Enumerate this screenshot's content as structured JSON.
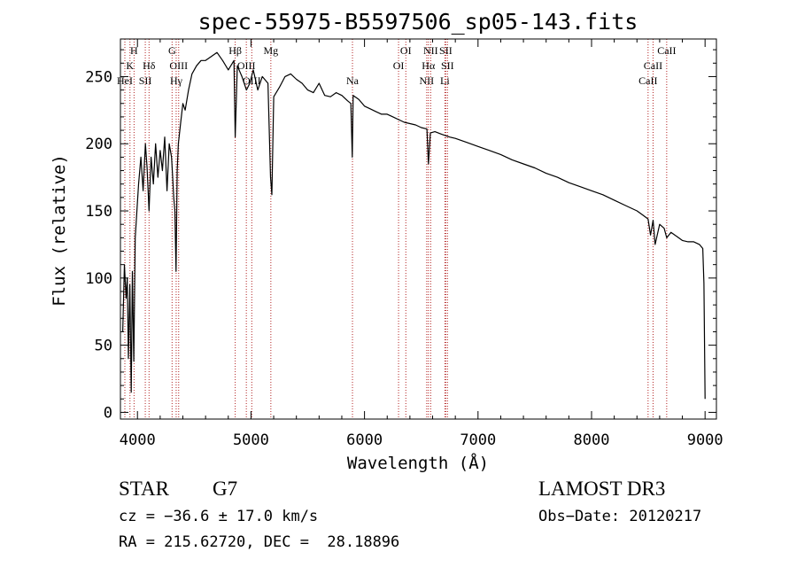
{
  "chart_data": {
    "type": "line",
    "title": "spec-55975-B5597506_sp05-143.fits",
    "xlabel": "Wavelength (Å)",
    "ylabel": "Flux (relative)",
    "xlim": [
      3850,
      9100
    ],
    "ylim": [
      -5,
      278
    ],
    "grid": false,
    "x_ticks": [
      4000,
      5000,
      6000,
      7000,
      8000,
      9000
    ],
    "x_tick_labels": [
      "4000",
      "5000",
      "6000",
      "7000",
      "8000",
      "9000"
    ],
    "y_ticks": [
      0,
      50,
      100,
      150,
      200,
      250
    ],
    "y_tick_labels": [
      "0",
      "50",
      "100",
      "150",
      "200",
      "250"
    ],
    "series": [
      {
        "name": "spectrum",
        "color": "#000000",
        "x": [
          3870,
          3885,
          3900,
          3910,
          3920,
          3933,
          3945,
          3955,
          3968,
          3980,
          3995,
          4010,
          4030,
          4050,
          4070,
          4085,
          4102,
          4120,
          4140,
          4160,
          4180,
          4200,
          4220,
          4240,
          4260,
          4280,
          4300,
          4310,
          4320,
          4330,
          4340,
          4350,
          4360,
          4380,
          4400,
          4420,
          4450,
          4480,
          4520,
          4560,
          4600,
          4650,
          4700,
          4750,
          4800,
          4850,
          4861,
          4880,
          4920,
          4960,
          4990,
          5020,
          5060,
          5100,
          5150,
          5172,
          5184,
          5200,
          5250,
          5300,
          5350,
          5400,
          5450,
          5500,
          5550,
          5600,
          5650,
          5700,
          5750,
          5800,
          5850,
          5880,
          5892,
          5900,
          5950,
          6000,
          6050,
          6100,
          6150,
          6200,
          6250,
          6300,
          6350,
          6400,
          6450,
          6500,
          6550,
          6563,
          6580,
          6620,
          6680,
          6750,
          6800,
          6900,
          7000,
          7100,
          7200,
          7300,
          7400,
          7500,
          7600,
          7700,
          7800,
          7900,
          8000,
          8100,
          8200,
          8300,
          8400,
          8450,
          8498,
          8520,
          8542,
          8560,
          8600,
          8640,
          8662,
          8700,
          8750,
          8800,
          8850,
          8900,
          8950,
          8980,
          8990,
          9000
        ],
        "values": [
          60,
          110,
          85,
          100,
          40,
          95,
          15,
          105,
          38,
          130,
          150,
          170,
          190,
          165,
          200,
          182,
          150,
          190,
          170,
          200,
          175,
          195,
          180,
          205,
          165,
          200,
          190,
          175,
          160,
          150,
          105,
          180,
          200,
          215,
          230,
          225,
          240,
          252,
          258,
          262,
          262,
          265,
          268,
          262,
          255,
          262,
          205,
          258,
          250,
          240,
          245,
          255,
          240,
          250,
          245,
          175,
          162,
          235,
          242,
          250,
          252,
          248,
          245,
          240,
          238,
          245,
          236,
          235,
          238,
          236,
          232,
          230,
          190,
          236,
          233,
          228,
          226,
          224,
          222,
          222,
          220,
          218,
          216,
          215,
          214,
          212,
          211,
          185,
          208,
          209,
          207,
          205,
          204,
          201,
          198,
          195,
          192,
          188,
          185,
          182,
          178,
          175,
          171,
          168,
          165,
          162,
          158,
          154,
          150,
          147,
          144,
          132,
          143,
          125,
          140,
          137,
          130,
          134,
          131,
          128,
          127,
          127,
          125,
          122,
          96,
          10
        ]
      }
    ],
    "spectral_lines": [
      {
        "label": "H",
        "wavelength": 3970,
        "row": 0
      },
      {
        "label": "K",
        "wavelength": 3934,
        "row": 1
      },
      {
        "label": "HeI",
        "wavelength": 3889,
        "row": 2
      },
      {
        "label": "SII",
        "wavelength": 4069,
        "row": 2
      },
      {
        "label": "Hδ",
        "wavelength": 4102,
        "row": 1
      },
      {
        "label": "G",
        "wavelength": 4305,
        "row": 0
      },
      {
        "label": "OIII",
        "wavelength": 4363,
        "row": 1
      },
      {
        "label": "Hγ",
        "wavelength": 4341,
        "row": 2
      },
      {
        "label": "Hβ",
        "wavelength": 4861,
        "row": 0
      },
      {
        "label": "OIII",
        "wavelength": 4959,
        "row": 1
      },
      {
        "label": "OIII",
        "wavelength": 5007,
        "row": 2
      },
      {
        "label": "Mg",
        "wavelength": 5175,
        "row": 0
      },
      {
        "label": "Na",
        "wavelength": 5894,
        "row": 2
      },
      {
        "label": "OI",
        "wavelength": 6300,
        "row": 1
      },
      {
        "label": "OI",
        "wavelength": 6364,
        "row": 0
      },
      {
        "label": "NII",
        "wavelength": 6548,
        "row": 2
      },
      {
        "label": "Hα",
        "wavelength": 6563,
        "row": 1
      },
      {
        "label": "NII",
        "wavelength": 6583,
        "row": 0
      },
      {
        "label": "SII",
        "wavelength": 6716,
        "row": 0
      },
      {
        "label": "SII",
        "wavelength": 6731,
        "row": 1
      },
      {
        "label": "Li",
        "wavelength": 6708,
        "row": 2
      },
      {
        "label": "CaII",
        "wavelength": 8498,
        "row": 2
      },
      {
        "label": "CaII",
        "wavelength": 8542,
        "row": 1
      },
      {
        "label": "CaII",
        "wavelength": 8662,
        "row": 0
      }
    ],
    "line_marker_color": "#b22222"
  },
  "info": {
    "object_type": "STAR",
    "subclass": "G7",
    "survey": "LAMOST DR3",
    "redshift_line": "cz = −36.6 ± 17.0 km/s",
    "obs_date_line": "Obs−Date: 20120217",
    "coords_line": "RA = 215.62720, DEC =  28.18896"
  }
}
